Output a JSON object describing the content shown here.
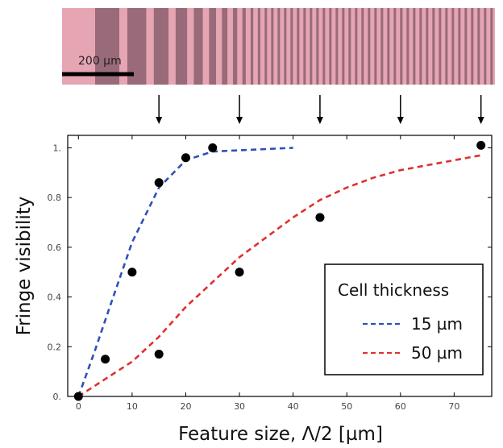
{
  "micrograph": {
    "scale_bar_label": "200 µm",
    "background_color": "#e6a5b3",
    "stripe_color": "#8a5f70",
    "arrow_x_values": [
      15,
      30,
      45,
      60,
      75
    ]
  },
  "chart_data": {
    "type": "scatter",
    "xlabel": "Feature size, Λ/2 [µm]",
    "ylabel": "Fringe visibility",
    "xlim": [
      -2,
      77
    ],
    "ylim": [
      0,
      1.05
    ],
    "x_ticks": [
      0,
      10,
      20,
      30,
      40,
      50,
      60,
      70
    ],
    "x_tick_labels": [
      "0",
      "10",
      "20",
      "30",
      "40",
      "50",
      "60",
      "70"
    ],
    "y_ticks": [
      0,
      0.2,
      0.4,
      0.6,
      0.8,
      1.0
    ],
    "y_tick_labels": [
      "0.",
      "0.2",
      "0.4",
      "0.6",
      "0.8",
      "1."
    ],
    "grid": false,
    "points": [
      {
        "x": 0,
        "y": 0.0
      },
      {
        "x": 5,
        "y": 0.15
      },
      {
        "x": 10,
        "y": 0.5
      },
      {
        "x": 15,
        "y": 0.86
      },
      {
        "x": 20,
        "y": 0.96
      },
      {
        "x": 25,
        "y": 1.0
      },
      {
        "x": 15,
        "y": 0.17
      },
      {
        "x": 30,
        "y": 0.5
      },
      {
        "x": 45,
        "y": 0.72
      },
      {
        "x": 75,
        "y": 1.01
      }
    ],
    "point_color": "#000000",
    "series": [
      {
        "name": "15 µm",
        "color": "#3050b8",
        "x": [
          0,
          3,
          6,
          10,
          15,
          20,
          25,
          30,
          40
        ],
        "y": [
          0,
          0.18,
          0.37,
          0.62,
          0.84,
          0.95,
          0.985,
          0.99,
          1.0
        ]
      },
      {
        "name": "50 µm",
        "color": "#e03030",
        "x": [
          0,
          5,
          10,
          15,
          20,
          25,
          30,
          35,
          40,
          45,
          50,
          55,
          60,
          65,
          70,
          75
        ],
        "y": [
          0,
          0.07,
          0.14,
          0.24,
          0.36,
          0.46,
          0.56,
          0.64,
          0.72,
          0.79,
          0.84,
          0.88,
          0.91,
          0.93,
          0.95,
          0.97
        ]
      }
    ],
    "legend": {
      "title": "Cell thickness",
      "placement": "bottom-right",
      "entries": [
        "15 µm",
        "50 µm"
      ]
    }
  }
}
